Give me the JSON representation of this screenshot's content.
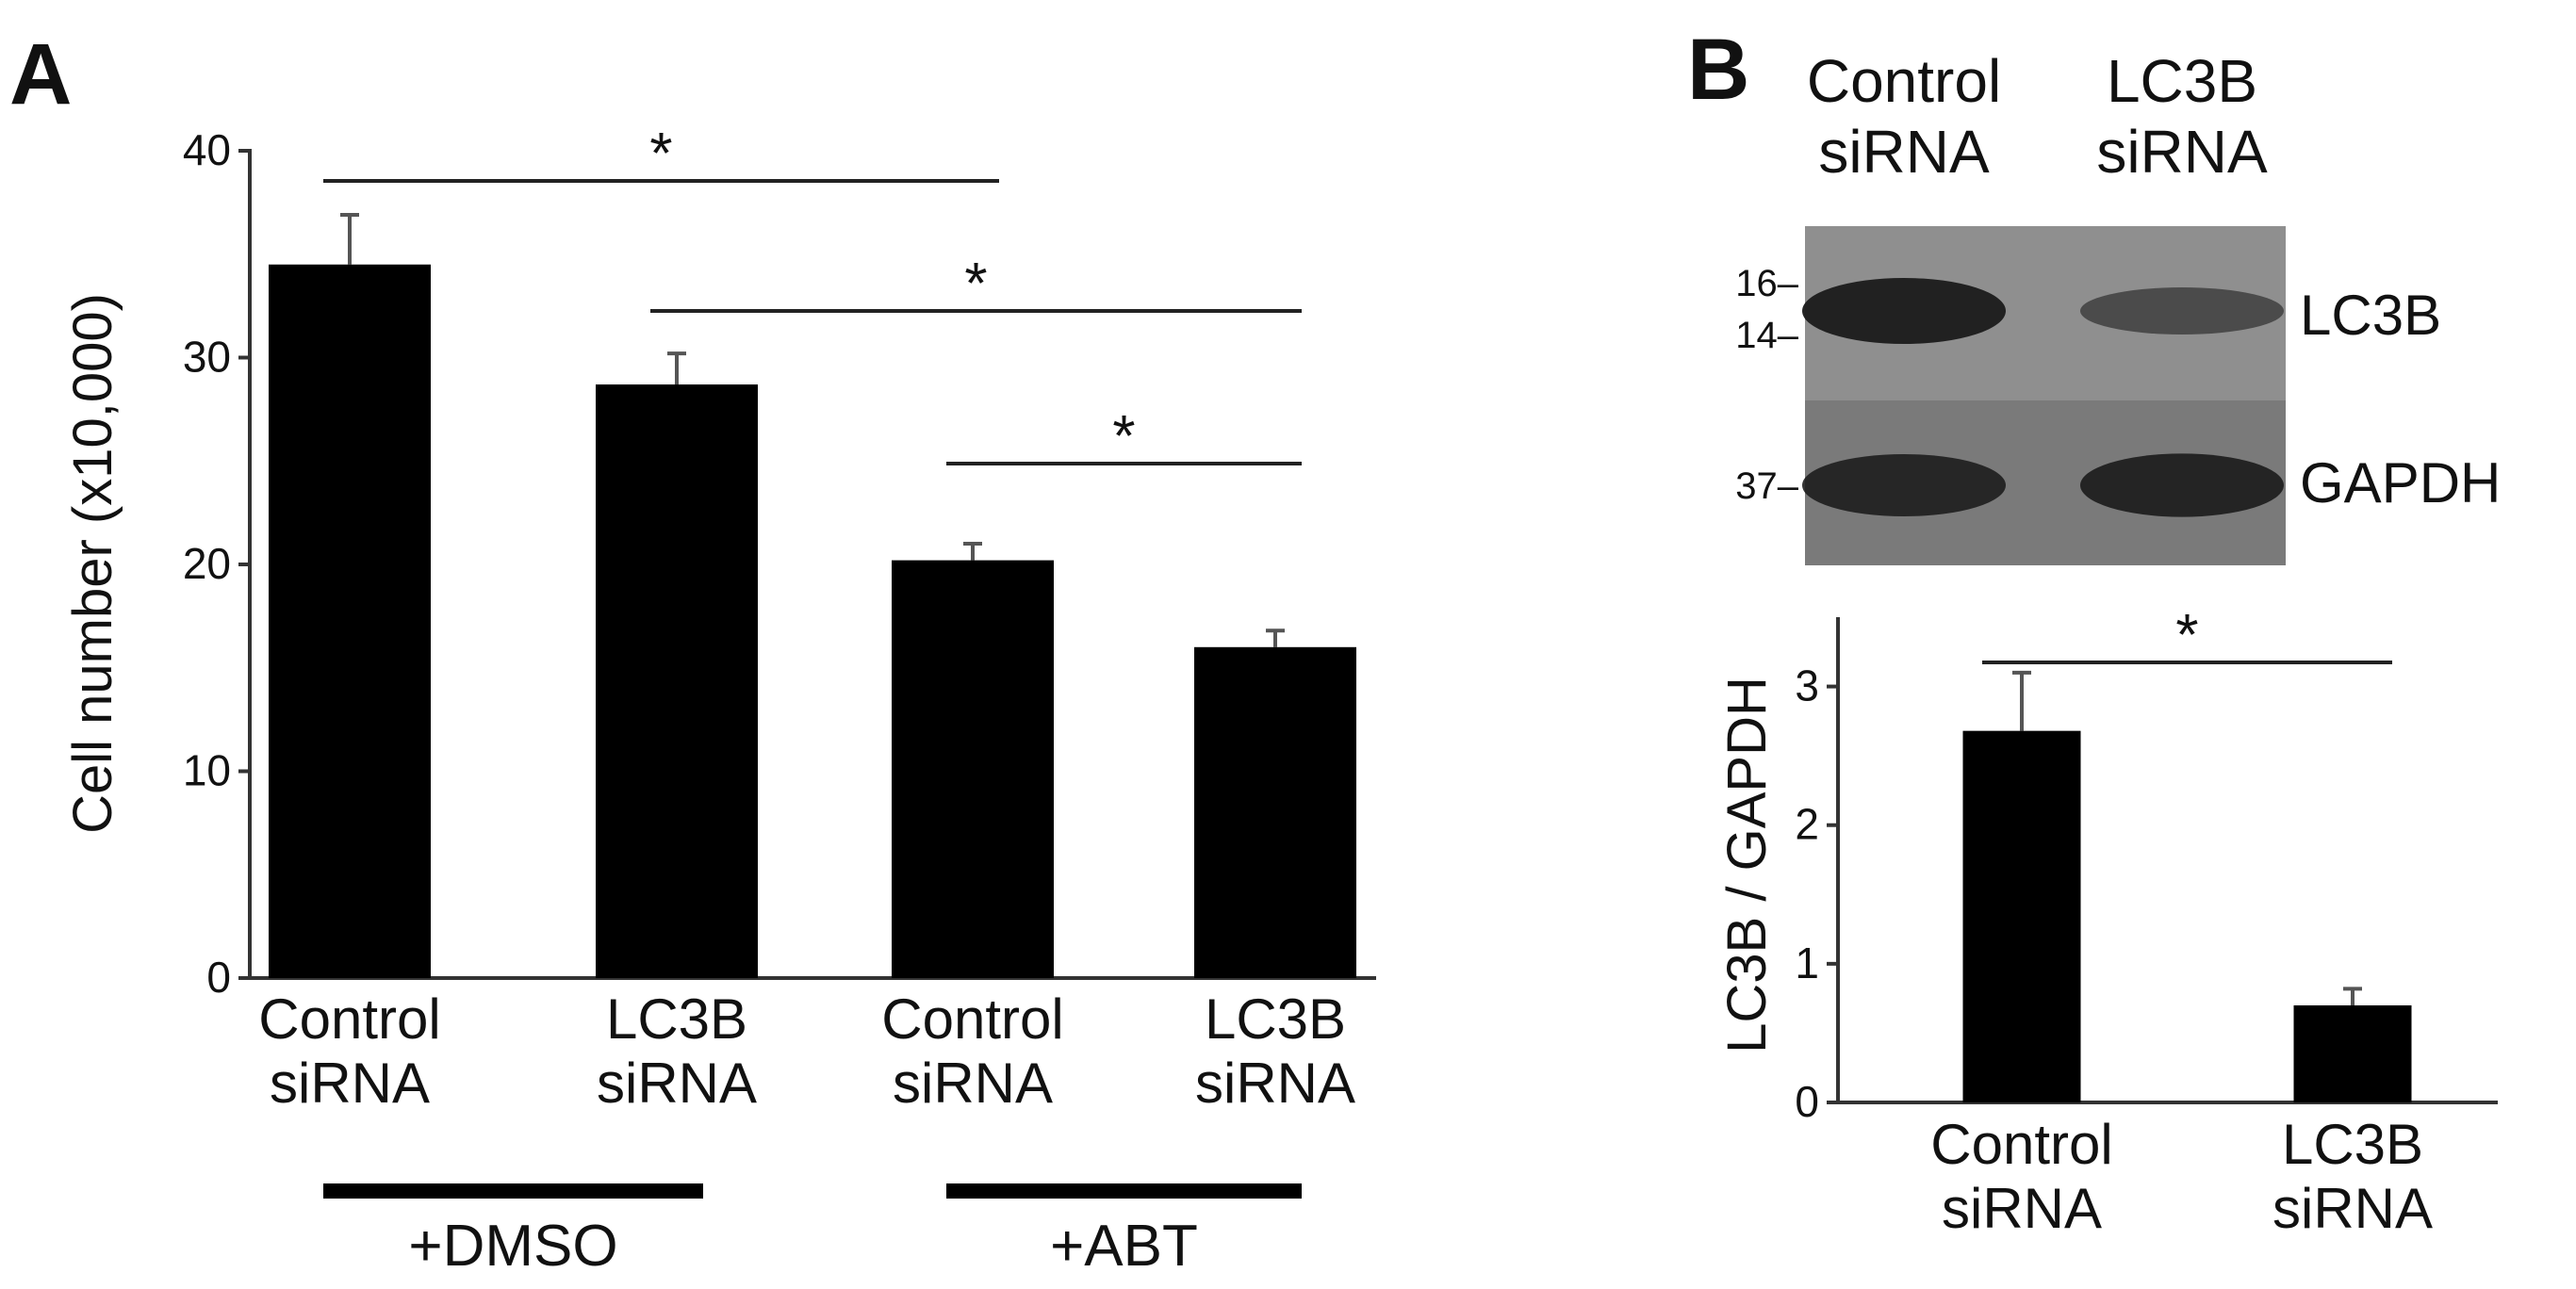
{
  "panel_labels": {
    "a": "A",
    "b": "B"
  },
  "colors": {
    "bar": "#000000",
    "blot_bg": "#8c8c8c",
    "band": "#1c1c1c"
  },
  "chart_data": [
    {
      "type": "bar",
      "panel": "A",
      "ylabel": "Cell number (x10,000)",
      "ylim": [
        0,
        40
      ],
      "yticks": [
        "0",
        "10",
        "20",
        "30",
        "40"
      ],
      "categories": [
        [
          "Control",
          "siRNA"
        ],
        [
          "LC3B",
          "siRNA"
        ],
        [
          "Control",
          "siRNA"
        ],
        [
          "LC3B",
          "siRNA"
        ]
      ],
      "values": [
        34.5,
        28.7,
        20.2,
        16.0
      ],
      "errors": [
        2.4,
        1.5,
        0.8,
        0.8
      ],
      "groups": [
        {
          "label": "+DMSO",
          "members": [
            0,
            1
          ]
        },
        {
          "label": "+ABT",
          "members": [
            2,
            3
          ]
        }
      ],
      "significance": [
        {
          "from": 0,
          "to": 2,
          "label": "*"
        },
        {
          "from": 1,
          "to": 3,
          "label": "*"
        },
        {
          "from": 2,
          "to": 3,
          "label": "*"
        }
      ]
    },
    {
      "type": "bar",
      "panel": "B",
      "ylabel": "LC3B / GAPDH",
      "ylim": [
        0,
        3.5
      ],
      "yticks": [
        "0",
        "1",
        "2",
        "3"
      ],
      "categories": [
        [
          "Control",
          "siRNA"
        ],
        [
          "LC3B",
          "siRNA"
        ]
      ],
      "values": [
        2.68,
        0.7
      ],
      "errors": [
        0.42,
        0.12
      ],
      "significance": [
        {
          "from": 0,
          "to": 1,
          "label": "*"
        }
      ]
    }
  ],
  "blot": {
    "lane_labels": [
      [
        "Control",
        "siRNA"
      ],
      [
        "LC3B",
        "siRNA"
      ]
    ],
    "markers": [
      "16",
      "14",
      "37"
    ],
    "rows": [
      {
        "label": "LC3B",
        "intensity": [
          0.95,
          0.45
        ]
      },
      {
        "label": "GAPDH",
        "intensity": [
          0.85,
          0.88
        ]
      }
    ]
  }
}
